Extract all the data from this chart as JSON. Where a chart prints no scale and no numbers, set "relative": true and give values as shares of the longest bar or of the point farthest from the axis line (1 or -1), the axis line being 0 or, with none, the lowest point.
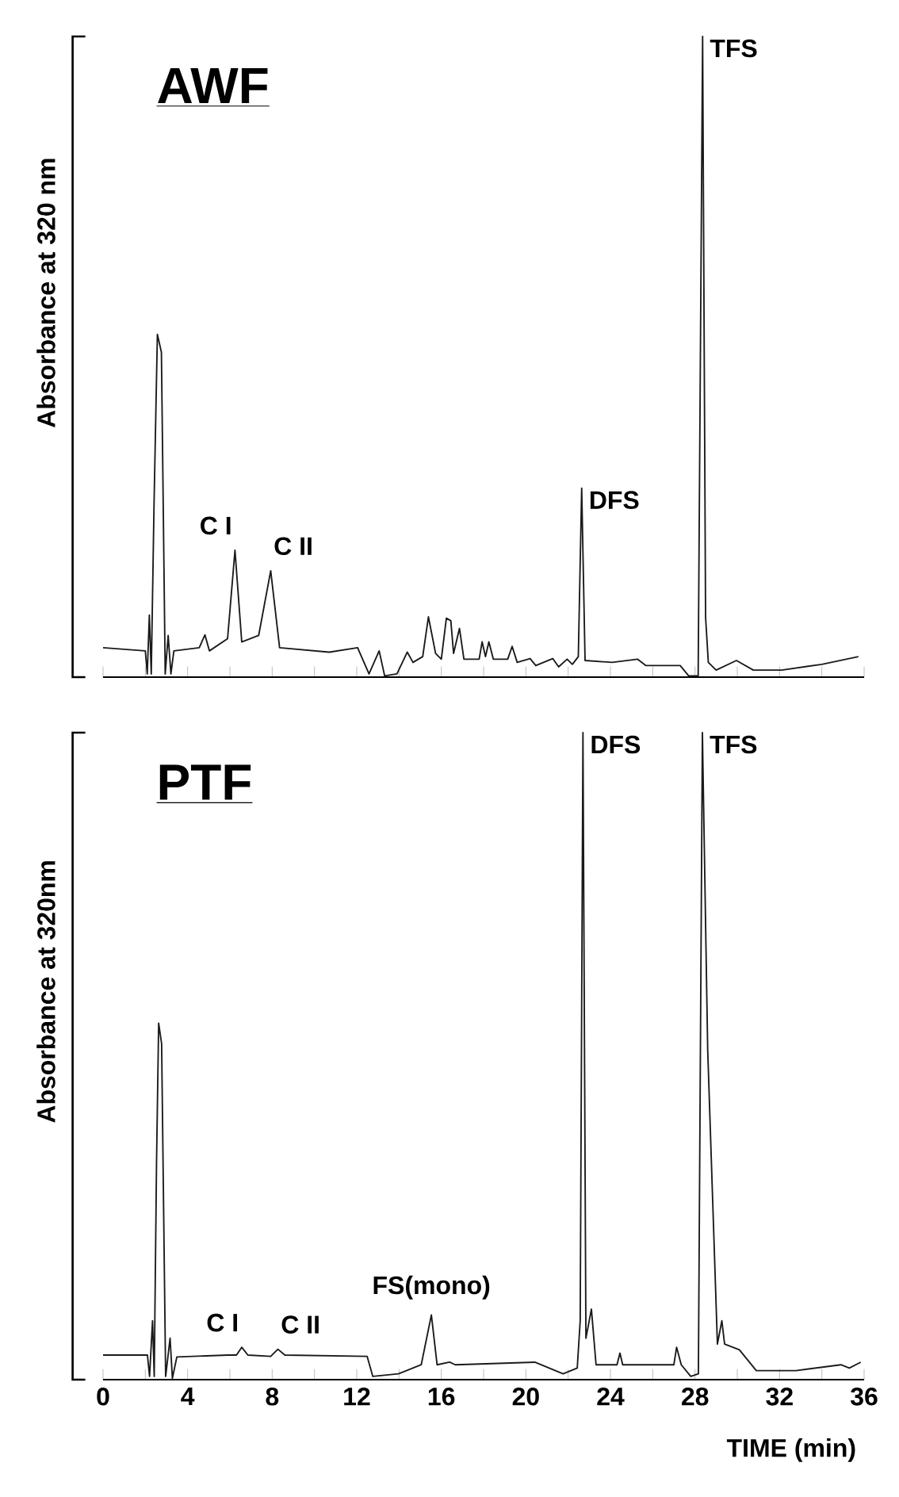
{
  "chart_data": [
    {
      "type": "line",
      "title": "AWF",
      "ylabel": "Absorbance at 320 nm",
      "relative": true,
      "xlim": [
        0,
        36
      ],
      "xticks": [
        0,
        {
          "value": 2,
          "label": null
        },
        4,
        {
          "value": 6,
          "label": null
        },
        8,
        {
          "value": 10,
          "label": null
        },
        12,
        {
          "value": 14,
          "label": null
        },
        16,
        {
          "value": 18,
          "label": null
        },
        20,
        {
          "value": 22,
          "label": null
        },
        24,
        {
          "value": 26,
          "label": null
        },
        28,
        {
          "value": 30,
          "label": null
        },
        32,
        {
          "value": 34,
          "label": null
        },
        36
      ],
      "tick_labels": false,
      "marker": "none",
      "line_style": "solid",
      "x": [
        0,
        2.0,
        2.09,
        2.19,
        2.28,
        2.41,
        2.57,
        2.76,
        2.94,
        3.08,
        3.21,
        3.35,
        4.55,
        4.82,
        5.03,
        5.89,
        6.24,
        6.56,
        7.36,
        7.93,
        8.35,
        10.7,
        12.04,
        12.58,
        13.06,
        13.32,
        13.9,
        14.39,
        14.66,
        15.12,
        15.39,
        15.73,
        16.0,
        16.24,
        16.45,
        16.58,
        16.86,
        17.07,
        17.79,
        17.93,
        18.09,
        18.25,
        18.46,
        19.14,
        19.35,
        19.59,
        20.2,
        20.47,
        21.27,
        21.55,
        21.95,
        22.2,
        22.48,
        22.64,
        22.8,
        24.08,
        25.28,
        25.68,
        27.3,
        27.7,
        28.15,
        28.36,
        28.5,
        28.63,
        29.0,
        29.96,
        30.76,
        32.1,
        34.0,
        35.73
      ],
      "series": [
        {
          "color": "#1a1a1a",
          "values": [
            0.046,
            0.041,
            0.005,
            0.097,
            0.005,
            0.267,
            0.535,
            0.507,
            0.005,
            0.065,
            0.005,
            0.041,
            0.046,
            0.066,
            0.041,
            0.06,
            0.198,
            0.055,
            0.065,
            0.166,
            0.046,
            0.039,
            0.046,
            0.005,
            0.041,
            0.002,
            0.005,
            0.039,
            0.023,
            0.032,
            0.094,
            0.037,
            0.028,
            0.092,
            0.088,
            0.037,
            0.076,
            0.028,
            0.028,
            0.055,
            0.032,
            0.055,
            0.028,
            0.028,
            0.048,
            0.023,
            0.029,
            0.018,
            0.029,
            0.016,
            0.028,
            0.02,
            0.032,
            0.295,
            0.026,
            0.023,
            0.028,
            0.018,
            0.018,
            0.002,
            0.002,
            1.0,
            0.094,
            0.023,
            0.011,
            0.026,
            0.011,
            0.011,
            0.02,
            0.032
          ]
        }
      ],
      "annotations": [
        {
          "text": "C I",
          "x": 6.24,
          "y": 0.198
        },
        {
          "text": "C II",
          "x": 7.93,
          "y": 0.166
        },
        {
          "text": "DFS",
          "x": 22.64,
          "y": 0.295
        },
        {
          "text": "TFS",
          "x": 28.36,
          "y": 1.0
        }
      ]
    },
    {
      "type": "line",
      "title": "PTF",
      "ylabel": "Absorbance at 320nm",
      "xlabel": "TIME (min)",
      "relative": true,
      "xlim": [
        0,
        36
      ],
      "xticks": [
        0,
        {
          "value": 2,
          "label": null
        },
        4,
        {
          "value": 6,
          "label": null
        },
        8,
        {
          "value": 10,
          "label": null
        },
        12,
        {
          "value": 14,
          "label": null
        },
        16,
        {
          "value": 18,
          "label": null
        },
        20,
        {
          "value": 22,
          "label": null
        },
        24,
        {
          "value": 26,
          "label": null
        },
        28,
        {
          "value": 30,
          "label": null
        },
        32,
        {
          "value": 34,
          "label": null
        },
        36
      ],
      "tick_labels": "x",
      "marker": "none",
      "line_style": "solid",
      "x": [
        0,
        2.1,
        2.2,
        2.34,
        2.42,
        2.53,
        2.63,
        2.77,
        2.96,
        3.17,
        3.28,
        3.49,
        5.91,
        6.31,
        6.56,
        6.85,
        7.93,
        8.27,
        8.6,
        12.49,
        12.76,
        13.97,
        15.05,
        15.53,
        15.8,
        16.39,
        16.66,
        20.42,
        21.76,
        22.43,
        22.57,
        22.7,
        22.84,
        23.1,
        23.32,
        24.31,
        24.45,
        24.58,
        27.0,
        27.13,
        27.35,
        27.8,
        28.16,
        28.35,
        28.6,
        29.06,
        29.27,
        29.4,
        30.1,
        30.9,
        32.78,
        34.9,
        35.3,
        35.84
      ],
      "series": [
        {
          "color": "#1a1a1a",
          "values": [
            0.038,
            0.038,
            0.005,
            0.091,
            0.005,
            0.337,
            0.551,
            0.519,
            0.005,
            0.064,
            0.002,
            0.035,
            0.038,
            0.038,
            0.05,
            0.038,
            0.036,
            0.047,
            0.038,
            0.036,
            0.005,
            0.009,
            0.023,
            0.1,
            0.023,
            0.027,
            0.023,
            0.027,
            0.009,
            0.018,
            0.091,
            1.0,
            0.064,
            0.109,
            0.023,
            0.023,
            0.041,
            0.023,
            0.023,
            0.05,
            0.023,
            0.005,
            0.009,
            1.0,
            0.51,
            0.055,
            0.091,
            0.055,
            0.046,
            0.014,
            0.014,
            0.023,
            0.018,
            0.027
          ]
        }
      ],
      "annotations": [
        {
          "text": "C I",
          "x": 6.56,
          "y": 0.05
        },
        {
          "text": "C II",
          "x": 8.27,
          "y": 0.047
        },
        {
          "text": "FS(mono)",
          "x": 15.53,
          "y": 0.1
        },
        {
          "text": "DFS",
          "x": 22.7,
          "y": 1.0
        },
        {
          "text": "TFS",
          "x": 28.35,
          "y": 1.0
        }
      ]
    }
  ]
}
